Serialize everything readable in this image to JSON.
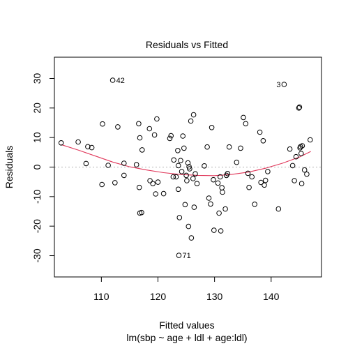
{
  "chart_data": {
    "type": "scatter",
    "title": "Residuals vs Fitted",
    "xlabel": "Fitted values",
    "subtitle": "lm(sbp ~ age + ldl + age:ldl)",
    "ylabel": "Residuals",
    "xlim": [
      101.7,
      148.9
    ],
    "ylim": [
      -37.2,
      37.2
    ],
    "xticks": [
      110,
      120,
      130,
      140
    ],
    "yticks": [
      -30,
      -20,
      -10,
      0,
      10,
      20,
      30
    ],
    "grid": false,
    "reference_line": 0,
    "colors": {
      "points": "#000000",
      "smooth": "#e0375a",
      "reference": "#b0b0b0"
    },
    "points": [
      [
        102.9,
        8.2
      ],
      [
        105.9,
        8.5
      ],
      [
        107.3,
        1.2
      ],
      [
        107.6,
        6.9
      ],
      [
        108.3,
        6.6
      ],
      [
        110.2,
        14.6
      ],
      [
        110.1,
        -5.9
      ],
      [
        111.2,
        0.6
      ],
      [
        112.0,
        29.4
      ],
      [
        112.4,
        -5.3
      ],
      [
        112.9,
        13.6
      ],
      [
        114.0,
        1.3
      ],
      [
        114.0,
        -2.8
      ],
      [
        116.2,
        0.8
      ],
      [
        116.6,
        14.7
      ],
      [
        116.7,
        -6.9
      ],
      [
        116.8,
        -15.6
      ],
      [
        116.8,
        9.9
      ],
      [
        117.1,
        -15.4
      ],
      [
        117.2,
        5.8
      ],
      [
        118.5,
        13.0
      ],
      [
        118.6,
        -4.6
      ],
      [
        119.1,
        -5.6
      ],
      [
        119.4,
        10.9
      ],
      [
        119.6,
        -9.1
      ],
      [
        119.8,
        16.3
      ],
      [
        120.0,
        -5.1
      ],
      [
        121.0,
        -9.0
      ],
      [
        122.1,
        9.7
      ],
      [
        122.3,
        10.6
      ],
      [
        122.7,
        -3.3
      ],
      [
        122.8,
        2.4
      ],
      [
        123.2,
        -3.3
      ],
      [
        123.5,
        5.6
      ],
      [
        123.6,
        0.5
      ],
      [
        123.6,
        -7.5
      ],
      [
        123.8,
        -17.1
      ],
      [
        123.7,
        -29.9
      ],
      [
        124.0,
        2.2
      ],
      [
        124.2,
        -1.5
      ],
      [
        124.4,
        10.5
      ],
      [
        124.6,
        6.4
      ],
      [
        124.8,
        -12.7
      ],
      [
        125.0,
        -2.8
      ],
      [
        125.1,
        -4.6
      ],
      [
        125.3,
        1.4
      ],
      [
        125.4,
        -20.1
      ],
      [
        125.5,
        0.1
      ],
      [
        125.6,
        -0.6
      ],
      [
        125.8,
        15.6
      ],
      [
        125.9,
        -24.0
      ],
      [
        126.2,
        -3.9
      ],
      [
        126.3,
        17.7
      ],
      [
        126.4,
        -13.6
      ],
      [
        126.6,
        -2.3
      ],
      [
        126.9,
        -5.6
      ],
      [
        128.2,
        0.4
      ],
      [
        128.7,
        6.8
      ],
      [
        129.0,
        -10.5
      ],
      [
        129.3,
        -12.5
      ],
      [
        129.5,
        13.4
      ],
      [
        129.8,
        -4.3
      ],
      [
        129.9,
        -21.4
      ],
      [
        130.6,
        -5.4
      ],
      [
        130.8,
        -15.6
      ],
      [
        131.0,
        -3.3
      ],
      [
        131.1,
        -21.6
      ],
      [
        131.3,
        -7.0
      ],
      [
        131.4,
        -8.5
      ],
      [
        131.9,
        -14.2
      ],
      [
        132.1,
        -2.8
      ],
      [
        132.3,
        -2.2
      ],
      [
        132.6,
        6.8
      ],
      [
        133.9,
        1.6
      ],
      [
        134.6,
        6.4
      ],
      [
        135.1,
        16.8
      ],
      [
        135.5,
        14.7
      ],
      [
        135.9,
        -2.1
      ],
      [
        136.1,
        -6.9
      ],
      [
        136.6,
        -3.3
      ],
      [
        137.1,
        -12.6
      ],
      [
        138.0,
        11.8
      ],
      [
        138.2,
        -5.2
      ],
      [
        138.6,
        8.9
      ],
      [
        138.8,
        -6.1
      ],
      [
        139.0,
        -4.5
      ],
      [
        139.4,
        -1.5
      ],
      [
        141.3,
        -14.2
      ],
      [
        142.3,
        28.0
      ],
      [
        143.3,
        6.1
      ],
      [
        143.8,
        0.5
      ],
      [
        144.1,
        -4.6
      ],
      [
        144.4,
        3.5
      ],
      [
        144.9,
        20.0
      ],
      [
        145.0,
        20.3
      ],
      [
        145.1,
        6.5
      ],
      [
        145.2,
        6.9
      ],
      [
        145.3,
        4.6
      ],
      [
        145.4,
        -5.6
      ],
      [
        145.5,
        7.2
      ],
      [
        145.9,
        -1.0
      ],
      [
        146.3,
        -2.4
      ],
      [
        146.9,
        9.2
      ]
    ],
    "labels": [
      {
        "text": "42",
        "x": 112.0,
        "y": 29.4
      },
      {
        "text": "3",
        "x": 142.3,
        "y": 28.0
      },
      {
        "text": "71",
        "x": 123.7,
        "y": -29.9
      }
    ],
    "smooth": [
      [
        102.9,
        7.6
      ],
      [
        106,
        5.7
      ],
      [
        109,
        3.7
      ],
      [
        112,
        1.7
      ],
      [
        115,
        0.1
      ],
      [
        118,
        -1.0
      ],
      [
        121,
        -1.9
      ],
      [
        124,
        -2.5
      ],
      [
        127,
        -2.8
      ],
      [
        130,
        -2.9
      ],
      [
        133,
        -2.5
      ],
      [
        136,
        -1.7
      ],
      [
        139,
        -0.4
      ],
      [
        142,
        1.3
      ],
      [
        145,
        3.4
      ],
      [
        147,
        5.3
      ]
    ]
  }
}
